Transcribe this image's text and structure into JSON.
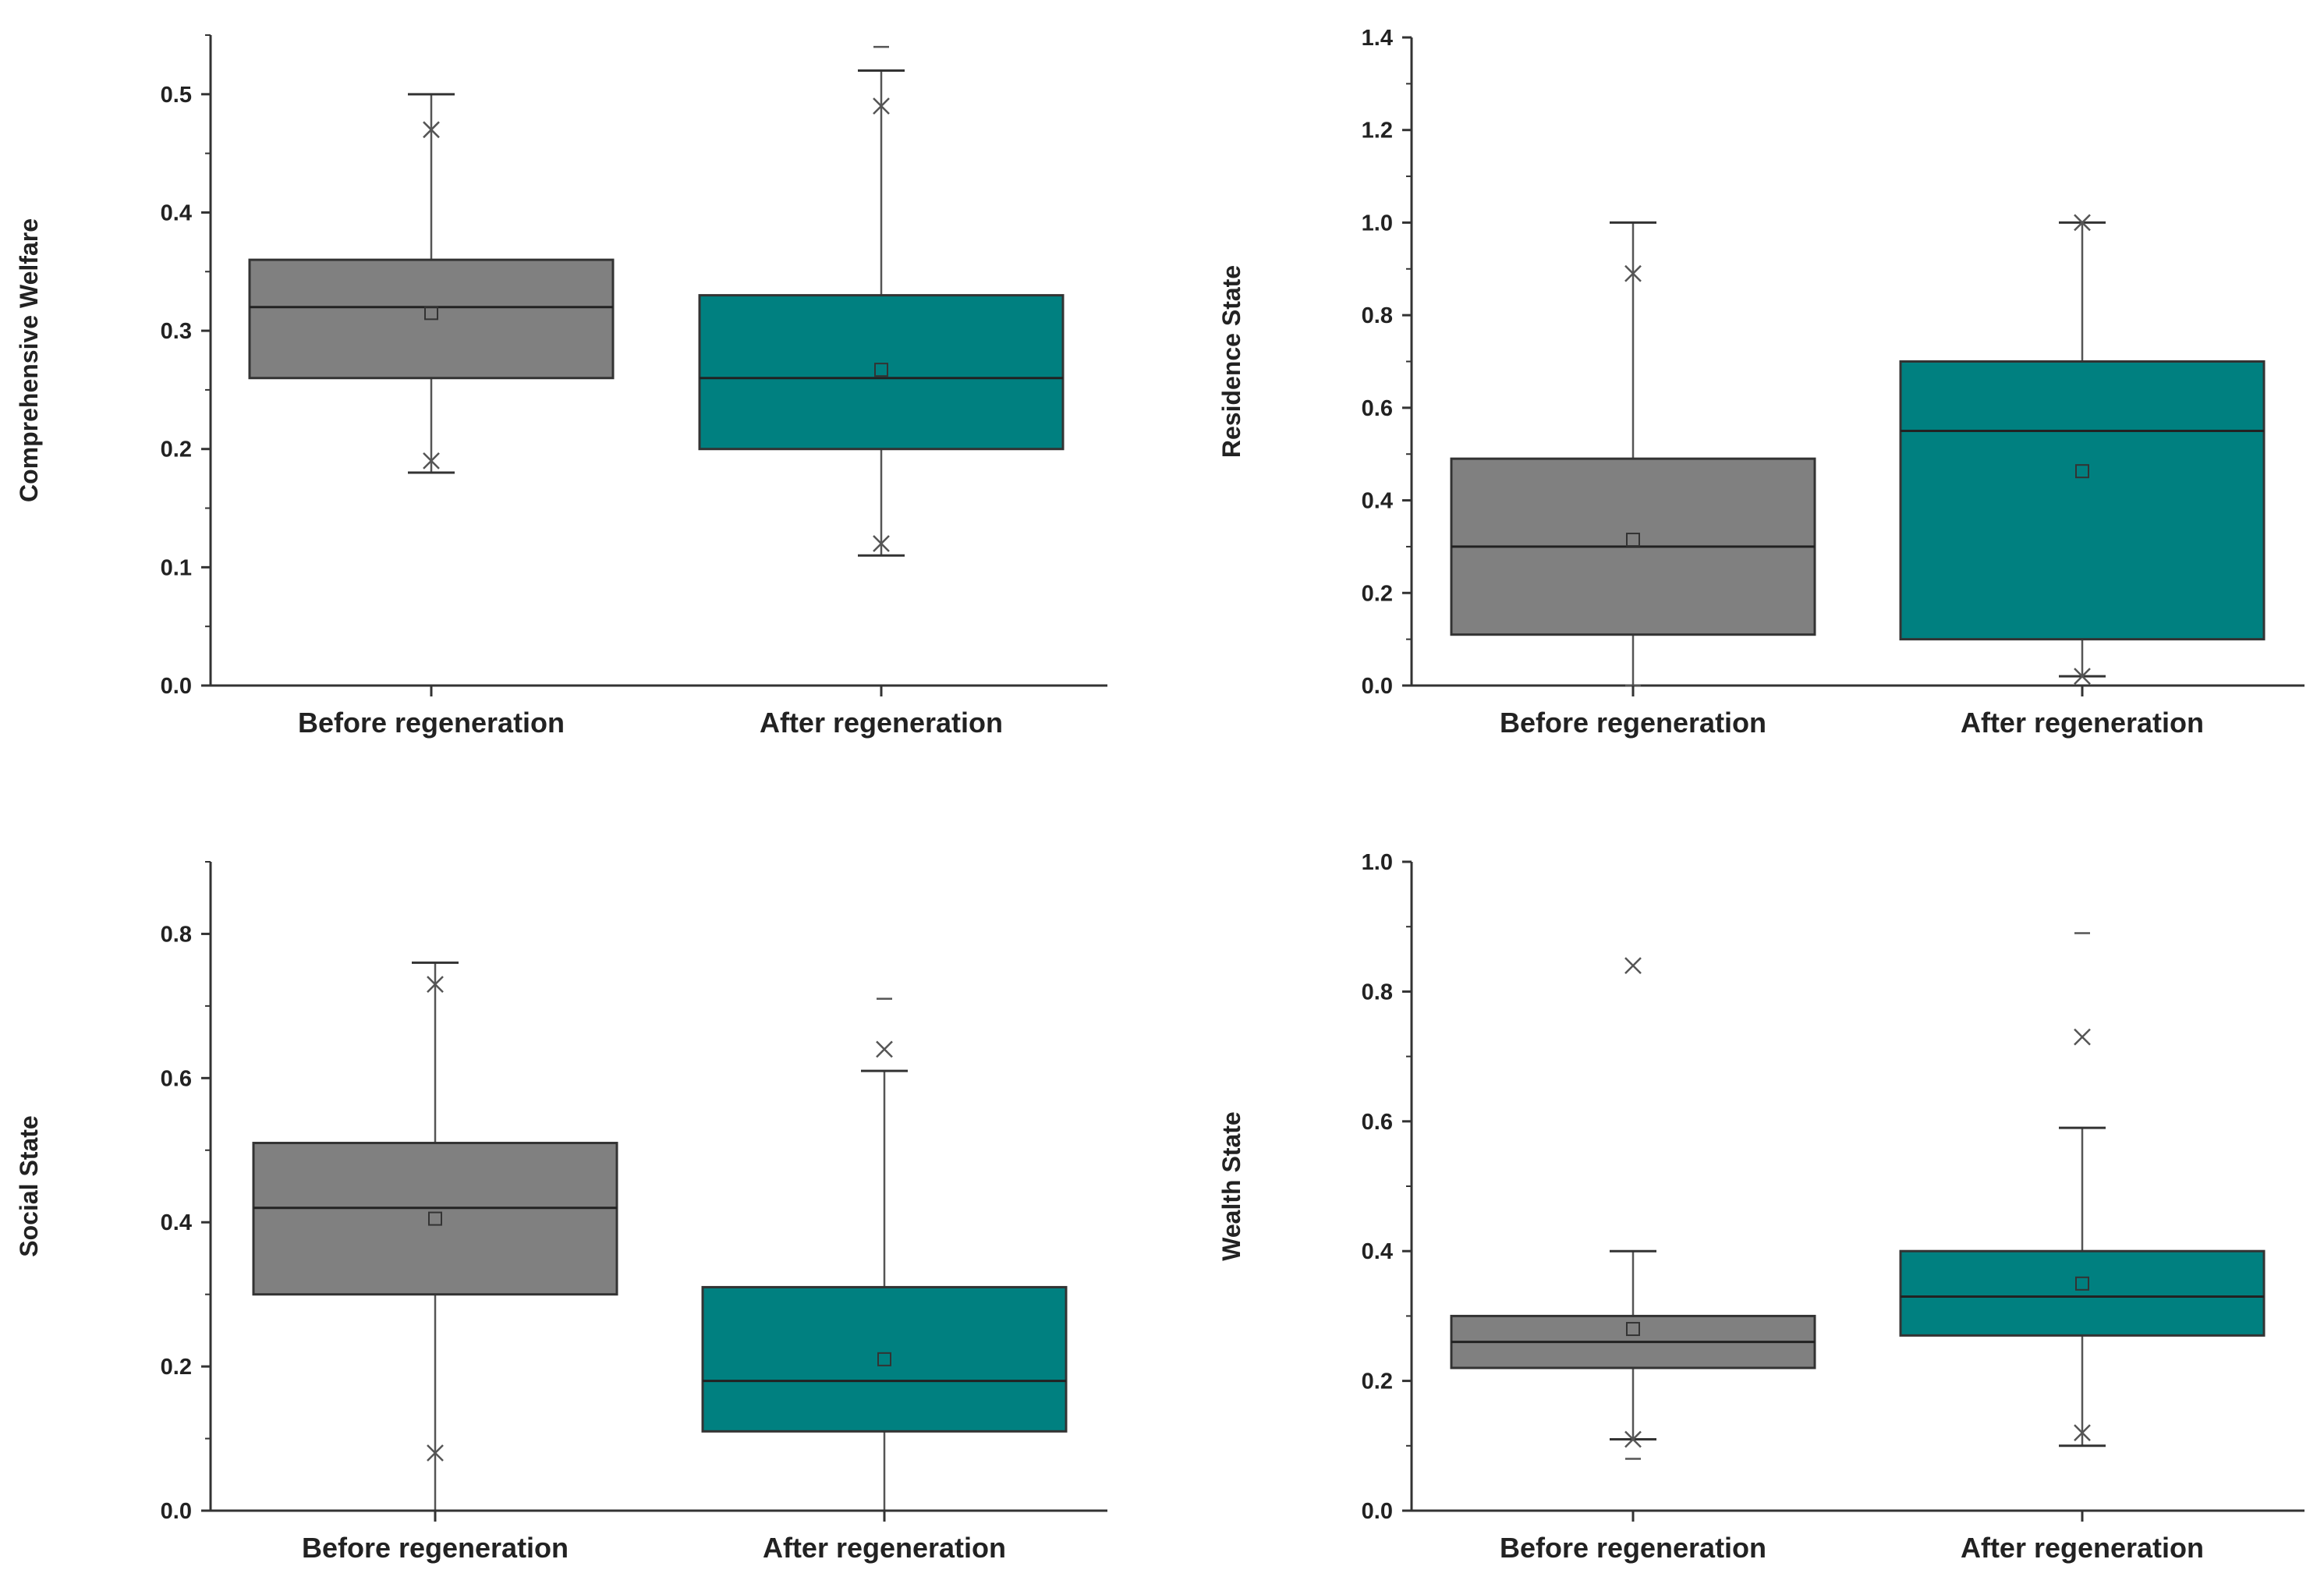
{
  "colors": {
    "before_box": "#808080",
    "after_box": "#008080",
    "box_edge": "#333333",
    "whisker": "#555555",
    "axis": "#333333",
    "outlier_marker": "#555555"
  },
  "chart_data": [
    {
      "type": "box",
      "ylabel": "Comprehensive Welfare",
      "ylim": [
        0.0,
        0.55
      ],
      "yticks": [
        0.0,
        0.1,
        0.2,
        0.3,
        0.4,
        0.5
      ],
      "ytick_labels": [
        "0.0",
        "0.1",
        "0.2",
        "0.3",
        "0.4",
        "0.5"
      ],
      "categories": [
        "Before regeneration",
        "After regeneration"
      ],
      "boxes": [
        {
          "name": "Before regeneration",
          "whisker_low": 0.18,
          "q1": 0.26,
          "median": 0.32,
          "q3": 0.36,
          "whisker_high": 0.5,
          "mean": 0.315,
          "markers_x": [
            0.47,
            0.19
          ],
          "markers_dash": []
        },
        {
          "name": "After regeneration",
          "whisker_low": 0.11,
          "q1": 0.2,
          "median": 0.26,
          "q3": 0.33,
          "whisker_high": 0.52,
          "mean": 0.267,
          "markers_x": [
            0.49,
            0.12
          ],
          "markers_dash": [
            0.54
          ]
        }
      ]
    },
    {
      "type": "box",
      "ylabel": "Residence State",
      "ylim": [
        0.0,
        1.4
      ],
      "yticks": [
        0.0,
        0.2,
        0.4,
        0.6,
        0.8,
        1.0,
        1.2,
        1.4
      ],
      "ytick_labels": [
        "0.0",
        "0.2",
        "0.4",
        "0.6",
        "0.8",
        "1.0",
        "1.2",
        "1.4"
      ],
      "categories": [
        "Before regeneration",
        "After regeneration"
      ],
      "boxes": [
        {
          "name": "Before regeneration",
          "whisker_low": 0.0,
          "q1": 0.11,
          "median": 0.3,
          "q3": 0.49,
          "whisker_high": 1.0,
          "mean": 0.315,
          "markers_x": [
            0.89
          ],
          "markers_dash": [
            0.0
          ]
        },
        {
          "name": "After regeneration",
          "whisker_low": 0.02,
          "q1": 0.1,
          "median": 0.55,
          "q3": 0.7,
          "whisker_high": 1.0,
          "mean": 0.463,
          "markers_x": [
            1.0,
            0.02
          ],
          "markers_dash": []
        }
      ]
    },
    {
      "type": "box",
      "ylabel": "Social  State",
      "ylim": [
        0.0,
        0.9
      ],
      "yticks": [
        0.0,
        0.2,
        0.4,
        0.6,
        0.8
      ],
      "ytick_labels": [
        "0.0",
        "0.2",
        "0.4",
        "0.6",
        "0.8"
      ],
      "categories": [
        "Before regeneration",
        "After regeneration"
      ],
      "boxes": [
        {
          "name": "Before regeneration",
          "whisker_low": 0.0,
          "q1": 0.3,
          "median": 0.42,
          "q3": 0.51,
          "whisker_high": 0.76,
          "mean": 0.405,
          "markers_x": [
            0.73,
            0.08
          ],
          "markers_dash": []
        },
        {
          "name": "After regeneration",
          "whisker_low": 0.0,
          "q1": 0.11,
          "median": 0.18,
          "q3": 0.31,
          "whisker_high": 0.61,
          "mean": 0.21,
          "markers_x": [
            0.64
          ],
          "markers_dash": [
            0.71
          ]
        }
      ]
    },
    {
      "type": "box",
      "ylabel": "Wealth State",
      "ylim": [
        0.0,
        1.0
      ],
      "yticks": [
        0.0,
        0.2,
        0.4,
        0.6,
        0.8,
        1.0
      ],
      "ytick_labels": [
        "0.0",
        "0.2",
        "0.4",
        "0.6",
        "0.8",
        "1.0"
      ],
      "categories": [
        "Before regeneration",
        "After regeneration"
      ],
      "boxes": [
        {
          "name": "Before regeneration",
          "whisker_low": 0.11,
          "q1": 0.22,
          "median": 0.26,
          "q3": 0.3,
          "whisker_high": 0.4,
          "mean": 0.28,
          "markers_x": [
            0.84,
            0.11
          ],
          "markers_dash": [
            0.08
          ]
        },
        {
          "name": "After regeneration",
          "whisker_low": 0.1,
          "q1": 0.27,
          "median": 0.33,
          "q3": 0.4,
          "whisker_high": 0.59,
          "mean": 0.35,
          "markers_x": [
            0.73,
            0.12
          ],
          "markers_dash": [
            0.89
          ]
        }
      ]
    }
  ]
}
